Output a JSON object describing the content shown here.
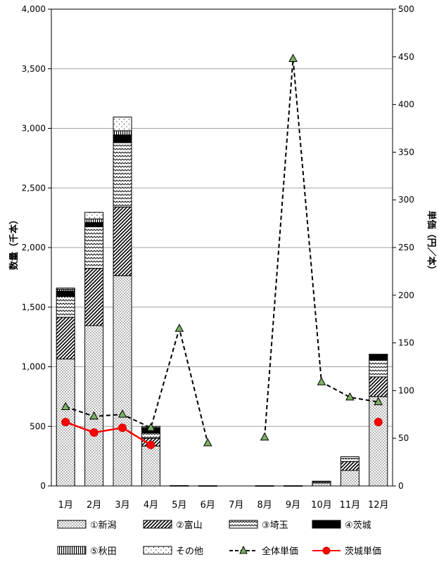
{
  "chart_data": {
    "type": "bar",
    "categories": [
      "1月",
      "2月",
      "3月",
      "4月",
      "5月",
      "6月",
      "7月",
      "8月",
      "9月",
      "10月",
      "11月",
      "12月"
    ],
    "series": [
      {
        "name": "①新潟",
        "kind": "bar",
        "axis": "left",
        "pattern": "dots",
        "values": [
          1065,
          1345,
          1765,
          335,
          3,
          2,
          0,
          2,
          2,
          25,
          130,
          750
        ]
      },
      {
        "name": "②富山",
        "kind": "bar",
        "axis": "left",
        "pattern": "diag",
        "values": [
          350,
          480,
          575,
          65,
          0,
          0,
          0,
          0,
          0,
          0,
          75,
          165
        ]
      },
      {
        "name": "③埼玉",
        "kind": "bar",
        "axis": "left",
        "pattern": "wave",
        "values": [
          175,
          350,
          540,
          45,
          0,
          0,
          0,
          0,
          0,
          10,
          25,
          140
        ]
      },
      {
        "name": "④茨城",
        "kind": "bar",
        "axis": "left",
        "pattern": "solid",
        "values": [
          45,
          35,
          65,
          40,
          0,
          0,
          0,
          0,
          0,
          0,
          0,
          45
        ]
      },
      {
        "name": "⑤秋田",
        "kind": "bar",
        "axis": "left",
        "pattern": "vert",
        "values": [
          15,
          30,
          35,
          5,
          0,
          0,
          0,
          0,
          0,
          0,
          0,
          0
        ]
      },
      {
        "name": "その他",
        "kind": "bar",
        "axis": "left",
        "pattern": "sparse",
        "values": [
          10,
          55,
          115,
          10,
          0,
          0,
          0,
          0,
          0,
          5,
          15,
          5
        ]
      },
      {
        "name": "全体単価",
        "kind": "line",
        "axis": "right",
        "style": "dashed-triangle",
        "values": [
          83,
          73,
          75,
          61,
          165,
          45,
          null,
          51,
          448,
          109,
          93,
          88
        ]
      },
      {
        "name": "茨城単価",
        "kind": "line",
        "axis": "right",
        "style": "solid-circle",
        "values": [
          67,
          56,
          61,
          43,
          null,
          null,
          null,
          null,
          null,
          null,
          null,
          67
        ]
      }
    ],
    "ylabel": "数量（千本）",
    "y2label": "単価（円／本）",
    "ylim": [
      0,
      4000
    ],
    "y2lim": [
      0,
      500
    ],
    "yticks": [
      "0",
      "500",
      "1,000",
      "1,500",
      "2,000",
      "2,500",
      "3,000",
      "3,500",
      "4,000"
    ],
    "y2ticks": [
      "0",
      "50",
      "100",
      "150",
      "200",
      "250",
      "300",
      "350",
      "400",
      "450",
      "500"
    ],
    "grid": true,
    "legend": "bottom"
  }
}
